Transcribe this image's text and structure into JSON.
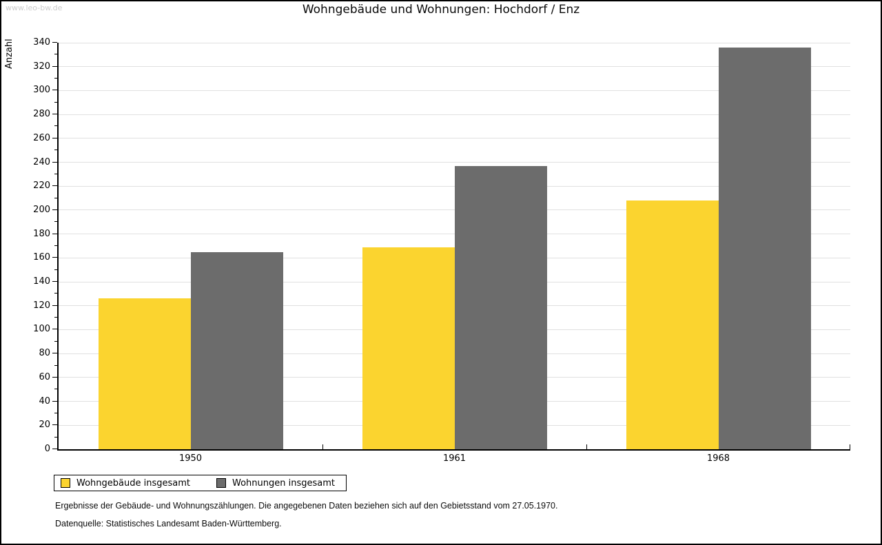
{
  "watermark": "www.leo-bw.de",
  "footer": {
    "line1": "Ergebnisse der Gebäude- und Wohnungszählungen. Die angegebenen Daten beziehen sich auf den Gebietsstand vom 27.05.1970.",
    "line2": "Datenquelle: Statistisches Landesamt Baden-Württemberg."
  },
  "colors": {
    "bar_yellow": "#FBD42F",
    "bar_gray": "#6C6C6C",
    "gridline": "#E0E0E0",
    "axis": "#000000",
    "watermark_text": "#CBCBCB"
  },
  "chart_data": {
    "type": "bar",
    "title": "Wohngebäude und Wohnungen: Hochdorf / Enz",
    "ylabel": "Anzahl",
    "xlabel": "",
    "categories": [
      "1950",
      "1961",
      "1968"
    ],
    "series": [
      {
        "name": "Wohngebäude insgesamt",
        "color": "#FBD42F",
        "values": [
          126,
          169,
          208
        ]
      },
      {
        "name": "Wohnungen insgesamt",
        "color": "#6C6C6C",
        "values": [
          165,
          237,
          336
        ]
      }
    ],
    "ylim": [
      0,
      340
    ],
    "ytick_step": 20,
    "minor_tick_step": 10,
    "grid": true,
    "legend_position": "bottom-left"
  }
}
